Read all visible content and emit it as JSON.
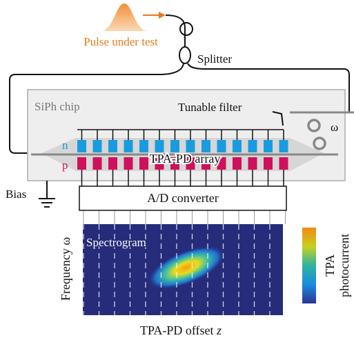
{
  "input": {
    "label": "Pulse under test"
  },
  "splitter": {
    "label": "Splitter"
  },
  "chip": {
    "label": "SiPh chip",
    "filter": {
      "label": "Tunable filter",
      "symbol": "ω"
    },
    "array": {
      "label": "TPA-PD array",
      "n_label": "n",
      "p_label": "p"
    },
    "bias": {
      "label": "Bias"
    }
  },
  "converter": {
    "label": "A/D converter"
  },
  "spectrogram": {
    "label": "Spectrogram",
    "y_label": "Frequency ω",
    "x_label": "TPA-PD offset ",
    "x_symbol": "z",
    "colorbar": {
      "label_lines": [
        "TPA",
        "photocurrent"
      ]
    }
  }
}
